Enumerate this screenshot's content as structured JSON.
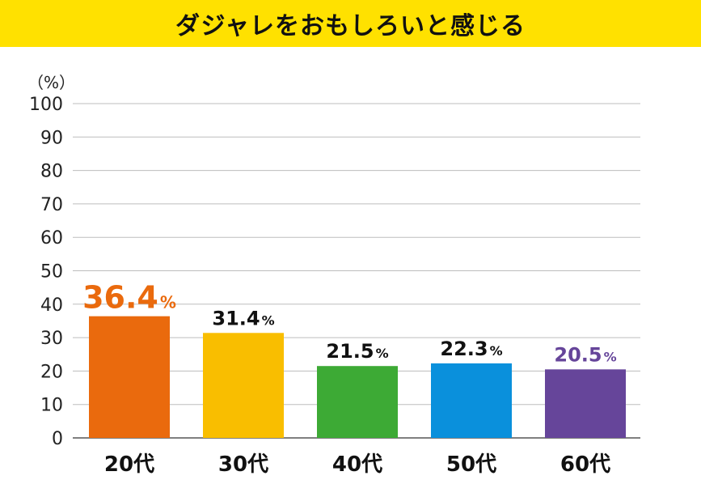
{
  "chart_data": {
    "type": "bar",
    "title": "ダジャレをおもしろいと感じる",
    "unit_label": "（%）",
    "categories": [
      "20代",
      "30代",
      "40代",
      "50代",
      "60代"
    ],
    "values": [
      36.4,
      31.4,
      21.5,
      22.3,
      20.5
    ],
    "value_labels": [
      "36.4",
      "31.4",
      "21.5",
      "22.3",
      "20.5"
    ],
    "value_suffix": "%",
    "bar_colors": [
      "#EA6A0D",
      "#F9BE00",
      "#3DAA35",
      "#0A90DC",
      "#66459A"
    ],
    "label_colors": [
      "#EA6A0D",
      "#111111",
      "#111111",
      "#111111",
      "#66459A"
    ],
    "highlight_index": 0,
    "ylim": [
      0,
      100
    ],
    "yticks": [
      0,
      10,
      20,
      30,
      40,
      50,
      60,
      70,
      80,
      90,
      100
    ],
    "grid": true,
    "xlabel": "",
    "ylabel": ""
  }
}
